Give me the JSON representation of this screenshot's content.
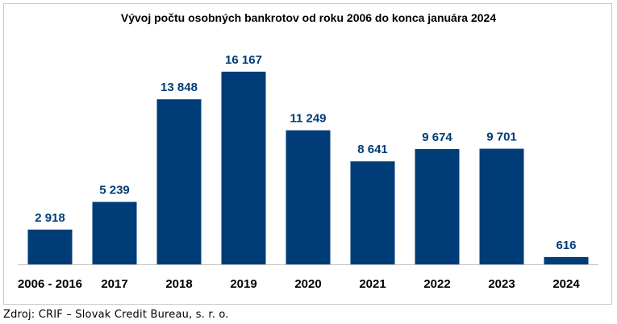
{
  "chart_data": {
    "type": "bar",
    "title": "Vývoj počtu osobných bankrotov od roku 2006 do konca januára 2024",
    "categories": [
      "2006 - 2016",
      "2017",
      "2018",
      "2019",
      "2020",
      "2021",
      "2022",
      "2023",
      "2024"
    ],
    "values": [
      2918,
      5239,
      13848,
      16167,
      11249,
      8641,
      9674,
      9701,
      616
    ],
    "value_labels": [
      "2 918",
      "5 239",
      "13 848",
      "16 167",
      "11 249",
      "8 641",
      "9 674",
      "9 701",
      "616"
    ],
    "xlabel": "",
    "ylabel": "",
    "ylim": [
      0,
      16500
    ],
    "grid": false,
    "legend": "none",
    "bar_color": "#003c78",
    "label_color": "#003c78"
  },
  "source": "Zdroj: CRIF – Slovak Credit Bureau, s. r. o."
}
